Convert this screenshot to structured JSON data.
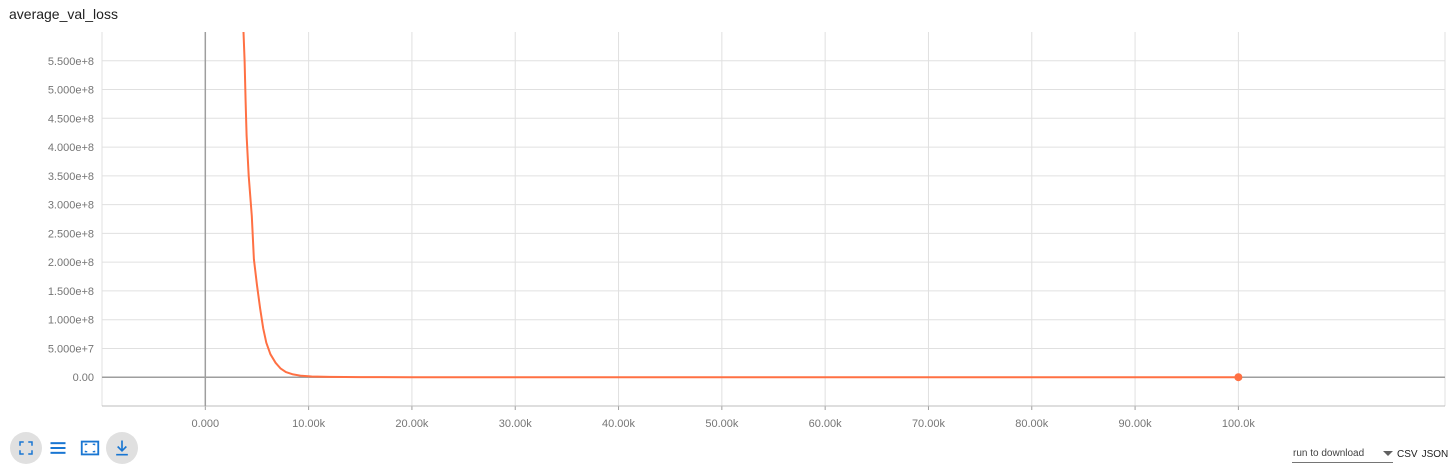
{
  "card": {
    "title": "average_val_loss"
  },
  "toolbar": {
    "expand_icon": "fullscreen-icon",
    "logscale_icon": "list-icon",
    "fit_icon": "fit-domain-icon",
    "download_icon": "download-icon"
  },
  "download": {
    "run_select_placeholder": "run to download",
    "csv_label": "CSV",
    "json_label": "JSON"
  },
  "colors": {
    "series": "#ff7043",
    "grid": "#e0e0e0",
    "axis": "#9e9e9e",
    "icon": "#1976d2"
  },
  "chart_data": {
    "type": "line",
    "title": "average_val_loss",
    "xlabel": "",
    "ylabel": "",
    "xlim": [
      -10000,
      120000
    ],
    "ylim": [
      -50000000,
      600000000
    ],
    "x_ticks": [
      0,
      10000,
      20000,
      30000,
      40000,
      50000,
      60000,
      70000,
      80000,
      90000,
      100000
    ],
    "x_tick_labels": [
      "0.000",
      "10.00k",
      "20.00k",
      "30.00k",
      "40.00k",
      "50.00k",
      "60.00k",
      "70.00k",
      "80.00k",
      "90.00k",
      "100.0k"
    ],
    "y_ticks": [
      0,
      50000000,
      100000000,
      150000000,
      200000000,
      250000000,
      300000000,
      350000000,
      400000000,
      450000000,
      500000000,
      550000000
    ],
    "y_tick_labels": [
      "0.00",
      "5.000e+7",
      "1.000e+8",
      "1.500e+8",
      "2.000e+8",
      "2.500e+8",
      "3.000e+8",
      "3.500e+8",
      "4.000e+8",
      "4.500e+8",
      "5.000e+8",
      "5.500e+8"
    ],
    "grid": true,
    "series": [
      {
        "x": [
          3700,
          3800,
          3900,
          4000,
          4200,
          4500,
          4700,
          5000,
          5300,
          5600,
          5900,
          6300,
          6800,
          7300,
          7800,
          8500,
          9300,
          10300,
          12000,
          15000,
          20000,
          30000,
          40000,
          50000,
          60000,
          70000,
          80000,
          90000,
          100000
        ],
        "y": [
          600000000,
          550000000,
          480000000,
          420000000,
          350000000,
          280000000,
          205000000,
          160000000,
          120000000,
          85000000,
          60000000,
          40000000,
          25000000,
          15000000,
          9000000,
          5000000,
          2500000,
          1200000,
          500000,
          200000,
          100000,
          50000,
          30000,
          20000,
          15000,
          10000,
          8000,
          6000,
          5000
        ]
      }
    ],
    "last_point": [
      100000,
      5000
    ]
  }
}
